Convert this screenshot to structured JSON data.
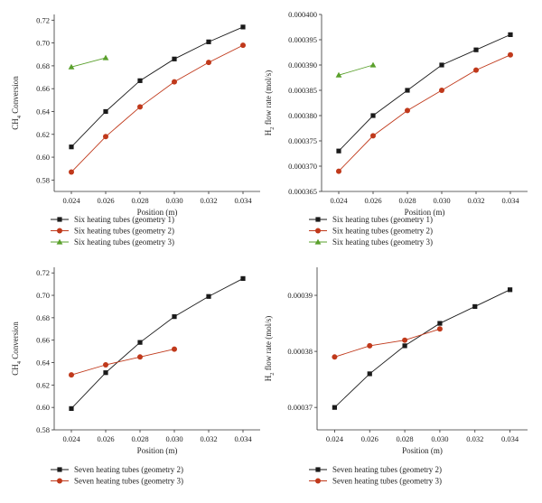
{
  "chart_data": [
    {
      "type": "line",
      "xlabel": "Position (m)",
      "ylabel": "CH4 Conversion",
      "ylabel_parts": {
        "main": "CH",
        "sub": "4",
        "rest": " Conversion"
      },
      "xlim": [
        0.023,
        0.035
      ],
      "ylim": [
        0.57,
        0.725
      ],
      "xticks": [
        0.024,
        0.026,
        0.028,
        0.03,
        0.032,
        0.034
      ],
      "xtick_labels": [
        "0.024",
        "0.026",
        "0.028",
        "0.030",
        "0.032",
        "0.034"
      ],
      "yticks": [
        0.58,
        0.6,
        0.62,
        0.64,
        0.66,
        0.68,
        0.7,
        0.72
      ],
      "ytick_labels": [
        "0.58",
        "0.60",
        "0.62",
        "0.64",
        "0.66",
        "0.68",
        "0.70",
        "0.72"
      ],
      "series": [
        {
          "name": "Six heating tubes (geometry 1)",
          "marker": "square",
          "color": "#1a1a1a",
          "x": [
            0.024,
            0.026,
            0.028,
            0.03,
            0.032,
            0.034
          ],
          "values": [
            0.609,
            0.64,
            0.667,
            0.686,
            0.701,
            0.714
          ]
        },
        {
          "name": "Six heating tubes (geometry 2)",
          "marker": "circle",
          "color": "#c0391b",
          "x": [
            0.024,
            0.026,
            0.028,
            0.03,
            0.032,
            0.034
          ],
          "values": [
            0.587,
            0.618,
            0.644,
            0.666,
            0.683,
            0.698
          ]
        },
        {
          "name": "Six heating tubes (geometry 3)",
          "marker": "triangle",
          "color": "#5aa02c",
          "x": [
            0.024,
            0.026
          ],
          "values": [
            0.679,
            0.687
          ]
        }
      ]
    },
    {
      "type": "line",
      "xlabel": "Position (m)",
      "ylabel": "H2 flow rate (mol/s)",
      "ylabel_parts": {
        "main": "H",
        "sub": "2",
        "rest": " flow rate (mol/s)"
      },
      "xlim": [
        0.023,
        0.035
      ],
      "ylim": [
        0.000365,
        0.0004
      ],
      "xticks": [
        0.024,
        0.026,
        0.028,
        0.03,
        0.032,
        0.034
      ],
      "xtick_labels": [
        "0.024",
        "0.026",
        "0.028",
        "0.030",
        "0.032",
        "0.034"
      ],
      "yticks": [
        0.000365,
        0.00037,
        0.000375,
        0.00038,
        0.000385,
        0.00039,
        0.000395,
        0.0004
      ],
      "ytick_labels": [
        "0.000365",
        "0.000370",
        "0.000375",
        "0.000380",
        "0.000385",
        "0.000390",
        "0.000395",
        "0.000400"
      ],
      "series": [
        {
          "name": "Six heating tubes (geometry 1)",
          "marker": "square",
          "color": "#1a1a1a",
          "x": [
            0.024,
            0.026,
            0.028,
            0.03,
            0.032,
            0.034
          ],
          "values": [
            0.000373,
            0.00038,
            0.000385,
            0.00039,
            0.000393,
            0.000396
          ]
        },
        {
          "name": "Six heating tubes (geometry 2)",
          "marker": "circle",
          "color": "#c0391b",
          "x": [
            0.024,
            0.026,
            0.028,
            0.03,
            0.032,
            0.034
          ],
          "values": [
            0.000369,
            0.000376,
            0.000381,
            0.000385,
            0.000389,
            0.000392
          ]
        },
        {
          "name": "Six heating tubes (geometry 3)",
          "marker": "triangle",
          "color": "#5aa02c",
          "x": [
            0.024,
            0.026
          ],
          "values": [
            0.000388,
            0.00039
          ]
        }
      ]
    },
    {
      "type": "line",
      "xlabel": "Position (m)",
      "ylabel": "CH4 Conversion",
      "ylabel_parts": {
        "main": "CH",
        "sub": "4",
        "rest": " Conversion"
      },
      "xlim": [
        0.023,
        0.035
      ],
      "ylim": [
        0.58,
        0.725
      ],
      "xticks": [
        0.024,
        0.026,
        0.028,
        0.03,
        0.032,
        0.034
      ],
      "xtick_labels": [
        "0.024",
        "0.026",
        "0.028",
        "0.030",
        "0.032",
        "0.034"
      ],
      "yticks": [
        0.58,
        0.6,
        0.62,
        0.64,
        0.66,
        0.68,
        0.7,
        0.72
      ],
      "ytick_labels": [
        "0.58",
        "0.60",
        "0.62",
        "0.64",
        "0.66",
        "0.68",
        "0.70",
        "0.72"
      ],
      "series": [
        {
          "name": "Seven heating tubes (geometry 2)",
          "marker": "square",
          "color": "#1a1a1a",
          "x": [
            0.024,
            0.026,
            0.028,
            0.03,
            0.032,
            0.034
          ],
          "values": [
            0.599,
            0.631,
            0.658,
            0.681,
            0.699,
            0.715
          ]
        },
        {
          "name": "Seven heating tubes (geometry 3)",
          "marker": "circle",
          "color": "#c0391b",
          "x": [
            0.024,
            0.026,
            0.028,
            0.03
          ],
          "values": [
            0.629,
            0.638,
            0.645,
            0.652
          ]
        }
      ]
    },
    {
      "type": "line",
      "xlabel": "Position (m)",
      "ylabel": "H2 flow rate (mol/s)",
      "ylabel_parts": {
        "main": "H",
        "sub": "2",
        "rest": " flow rate (mol/s)"
      },
      "xlim": [
        0.023,
        0.035
      ],
      "ylim": [
        0.000366,
        0.000395
      ],
      "xticks": [
        0.024,
        0.026,
        0.028,
        0.03,
        0.032,
        0.034
      ],
      "xtick_labels": [
        "0.024",
        "0.026",
        "0.028",
        "0.030",
        "0.032",
        "0.034"
      ],
      "yticks": [
        0.00037,
        0.00038,
        0.00039
      ],
      "ytick_labels": [
        "0.00037",
        "0.00038",
        "0.00039"
      ],
      "series": [
        {
          "name": "Seven heating tubes (geometry 2)",
          "marker": "square",
          "color": "#1a1a1a",
          "x": [
            0.024,
            0.026,
            0.028,
            0.03,
            0.032,
            0.034
          ],
          "values": [
            0.00037,
            0.000376,
            0.000381,
            0.000385,
            0.000388,
            0.000391
          ]
        },
        {
          "name": "Seven heating tubes (geometry 3)",
          "marker": "circle",
          "color": "#c0391b",
          "x": [
            0.024,
            0.026,
            0.028,
            0.03
          ],
          "values": [
            0.000379,
            0.000381,
            0.000382,
            0.000384
          ]
        }
      ]
    }
  ]
}
